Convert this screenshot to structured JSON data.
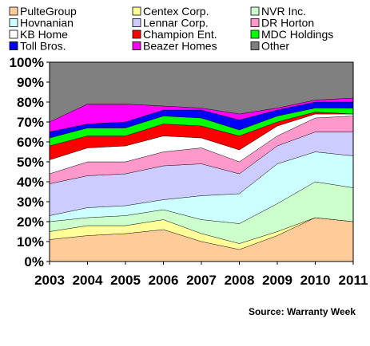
{
  "chart_data": {
    "type": "area",
    "stacked": true,
    "percent_stacked": true,
    "title": "",
    "xlabel": "",
    "ylabel": "",
    "ylim": [
      0,
      100
    ],
    "yticks": [
      "0%",
      "10%",
      "20%",
      "30%",
      "40%",
      "50%",
      "60%",
      "70%",
      "80%",
      "90%",
      "100%"
    ],
    "categories": [
      "2003",
      "2004",
      "2005",
      "2006",
      "2007",
      "2008",
      "2009",
      "2010",
      "2011"
    ],
    "legend_position": "top",
    "grid": false,
    "plot_background": "#c0c0c0",
    "series": [
      {
        "name": "PulteGroup",
        "color": "#ffcc99",
        "values": [
          11,
          13,
          14,
          16,
          10,
          6,
          13,
          22,
          20
        ]
      },
      {
        "name": "Centex Corp.",
        "color": "#ffff99",
        "values": [
          4,
          5,
          4,
          5,
          4,
          3,
          2,
          0,
          0
        ]
      },
      {
        "name": "NVR Inc.",
        "color": "#ccffcc",
        "values": [
          5,
          4,
          5,
          5,
          7,
          10,
          14,
          18,
          17
        ]
      },
      {
        "name": "Hovnanian",
        "color": "#ccffff",
        "values": [
          3,
          5,
          5,
          5,
          12,
          15,
          20,
          15,
          16
        ]
      },
      {
        "name": "Lennar Corp.",
        "color": "#ccccff",
        "values": [
          16,
          16,
          16,
          17,
          16,
          10,
          9,
          10,
          12
        ]
      },
      {
        "name": "DR Horton",
        "color": "#ff99cc",
        "values": [
          5,
          7,
          6,
          7,
          8,
          6,
          5,
          7,
          8
        ]
      },
      {
        "name": "KB Home",
        "color": "#ffffff",
        "values": [
          7,
          7,
          8,
          8,
          5,
          6,
          5,
          2,
          1
        ]
      },
      {
        "name": "Champion Ent.",
        "color": "#ff0000",
        "values": [
          7,
          6,
          5,
          6,
          6,
          7,
          2,
          1,
          0
        ]
      },
      {
        "name": "MDC Holdings",
        "color": "#00ff00",
        "values": [
          4,
          4,
          4,
          4,
          4,
          3,
          3,
          2,
          3
        ]
      },
      {
        "name": "Toll Bros.",
        "color": "#0000ff",
        "values": [
          3,
          2,
          3,
          3,
          4,
          5,
          3,
          3,
          3
        ]
      },
      {
        "name": "Beazer Homes",
        "color": "#ff00ff",
        "values": [
          5,
          10,
          9,
          2,
          1,
          3,
          1,
          1,
          2
        ]
      },
      {
        "name": "Other",
        "color": "#808080",
        "values": [
          30,
          21,
          21,
          22,
          23,
          26,
          23,
          19,
          18
        ]
      }
    ],
    "source": "Source: Warranty Week"
  }
}
